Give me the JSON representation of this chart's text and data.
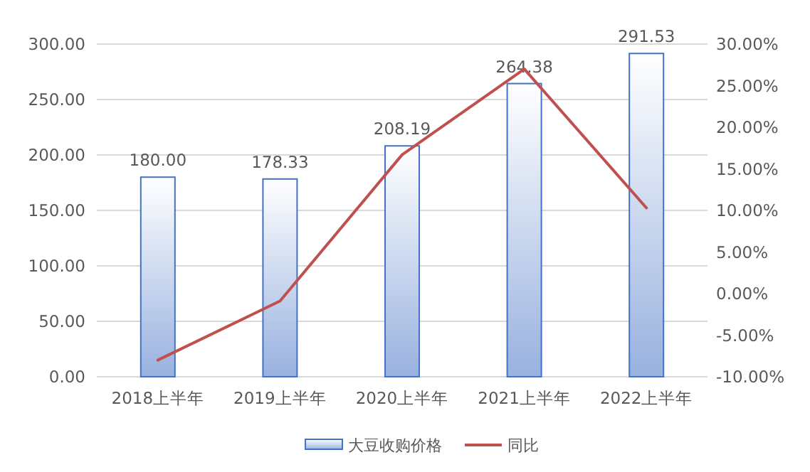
{
  "chart_data": {
    "type": "bar",
    "categories": [
      "2018上半年",
      "2019上半年",
      "2020上半年",
      "2021上半年",
      "2022上半年"
    ],
    "series": [
      {
        "name": "大豆收购价格",
        "color": "#4472c4",
        "values": [
          180.0,
          178.33,
          208.19,
          264.38,
          291.53
        ],
        "value_labels": [
          "180.00",
          "178.33",
          "208.19",
          "264.38",
          "291.53"
        ]
      },
      {
        "name": "同比",
        "type": "line",
        "axis": "y2",
        "color": "#c0504d",
        "values": [
          -8.0,
          -0.9,
          16.7,
          27.0,
          10.3
        ]
      }
    ],
    "ylim": [
      0,
      300
    ],
    "yticks": [
      {
        "value": 0,
        "label": "0.00"
      },
      {
        "value": 50,
        "label": "50.00"
      },
      {
        "value": 100,
        "label": "100.00"
      },
      {
        "value": 150,
        "label": "150.00"
      },
      {
        "value": 200,
        "label": "200.00"
      },
      {
        "value": 250,
        "label": "250.00"
      },
      {
        "value": 300,
        "label": "300.00"
      }
    ],
    "y2lim": [
      -10,
      30
    ],
    "y2ticks": [
      {
        "value": -10,
        "label": "-10.00%"
      },
      {
        "value": -5,
        "label": "-5.00%"
      },
      {
        "value": 0,
        "label": "0.00%"
      },
      {
        "value": 5,
        "label": "5.00%"
      },
      {
        "value": 10,
        "label": "10.00%"
      },
      {
        "value": 15,
        "label": "15.00%"
      },
      {
        "value": 20,
        "label": "20.00%"
      },
      {
        "value": 25,
        "label": "25.00%"
      },
      {
        "value": 30,
        "label": "30.00%"
      }
    ],
    "grid": "y",
    "legend": "bottom",
    "marker": "none",
    "line_style": "solid"
  }
}
